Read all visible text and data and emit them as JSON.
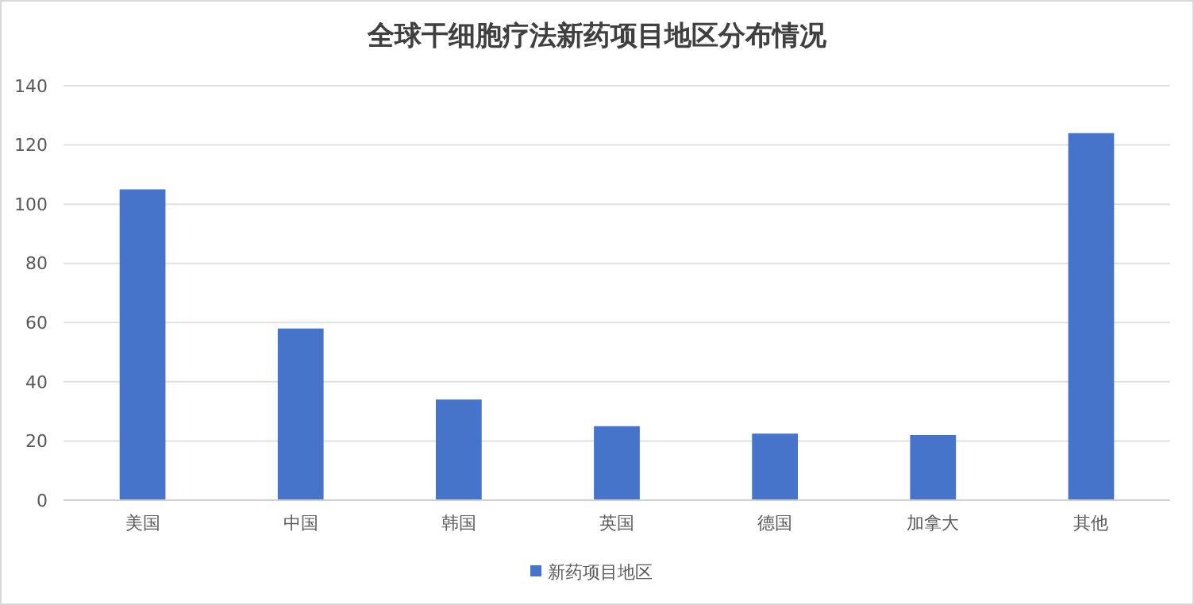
{
  "chart_data": {
    "type": "bar",
    "title": "全球干细胞疗法新药项目地区分布情况",
    "categories": [
      "美国",
      "中国",
      "韩国",
      "英国",
      "德国",
      "加拿大",
      "其他"
    ],
    "series": [
      {
        "name": "新药项目地区",
        "color": "#4774cb",
        "values": [
          105,
          58,
          34,
          25,
          22.5,
          22,
          124
        ]
      }
    ],
    "ylim": [
      0,
      140
    ],
    "yticks": [
      0,
      20,
      40,
      60,
      80,
      100,
      120,
      140
    ],
    "grid": "y",
    "legend": "bottom"
  }
}
